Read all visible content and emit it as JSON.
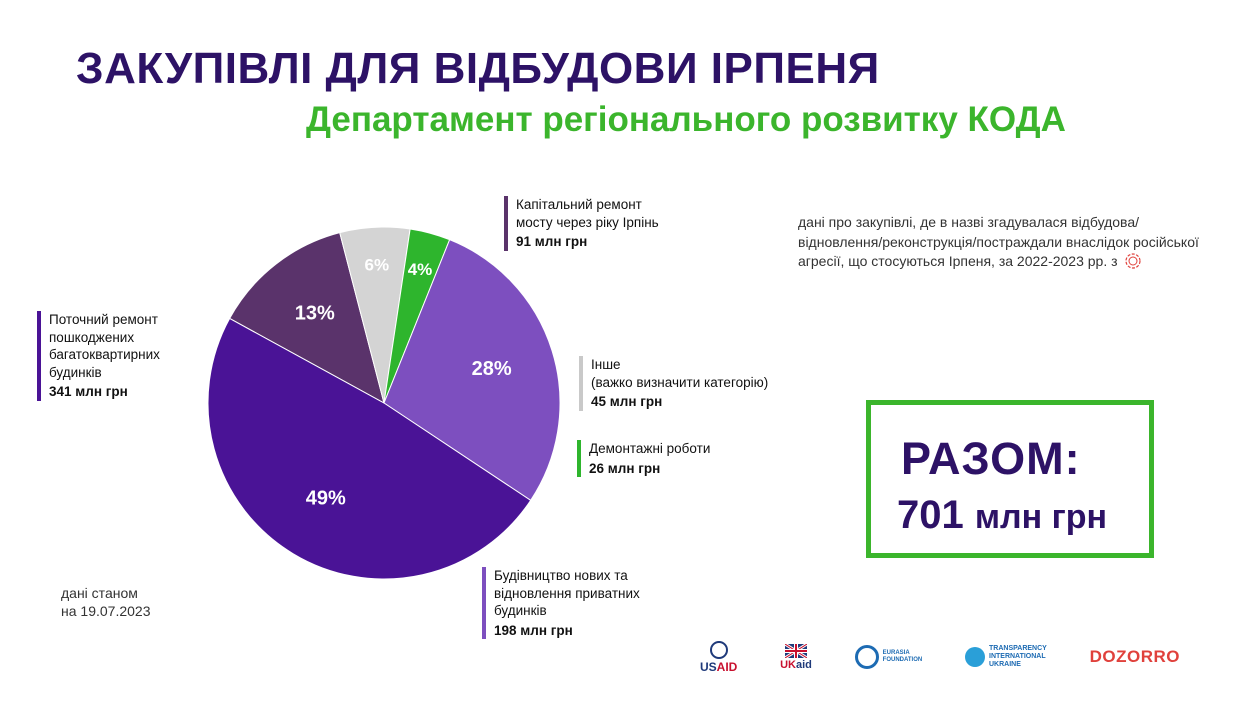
{
  "header": {
    "title": "ЗАКУПІВЛІ ДЛЯ ВІДБУДОВИ ІРПЕНЯ",
    "subtitle": "Департамент регіонального розвитку КОДА"
  },
  "colors": {
    "title": "#2d1266",
    "accent_green": "#3bb52c"
  },
  "chart_data": {
    "type": "pie",
    "unit": "млн грн",
    "slices": [
      {
        "label": "Капітальний ремонт\nмосту через ріку Ірпінь",
        "value": 91,
        "amount_label": "91 млн грн",
        "percent_label": "13%",
        "color": "#5a336b"
      },
      {
        "label": "Інше\n(важко визначити категорію)",
        "value": 45,
        "amount_label": "45 млн грн",
        "percent_label": "6%",
        "color": "#d4d4d4"
      },
      {
        "label": "Демонтажні роботи",
        "value": 26,
        "amount_label": "26 млн грн",
        "percent_label": "4%",
        "color": "#2eb52d"
      },
      {
        "label": "Будівництво нових та\nвідновлення приватних\nбудинків",
        "value": 198,
        "amount_label": "198 млн грн",
        "percent_label": "28%",
        "color": "#7d4fbf"
      },
      {
        "label": "Поточний ремонт\nпошкоджених\nбагатоквартирних\nбудинків",
        "value": 341,
        "amount_label": "341 млн грн",
        "percent_label": "49%",
        "color": "#4a1396"
      }
    ]
  },
  "note": {
    "text": "дані про закупівлі, де в назві згадувалася відбудова/ відновлення/реконструкція/постраждали внаслідок російської агресії, що стосуються Ірпеня, за 2022-2023 рр. з",
    "source_icon": "bi-logo-icon"
  },
  "total": {
    "label": "РАЗОМ:",
    "value": "701",
    "unit": "млн грн"
  },
  "date_note": "дані станом\nна 19.07.2023",
  "logos": {
    "usaid_a": "US",
    "usaid_b": "AID",
    "ukaid_a": "UK",
    "ukaid_b": "aid",
    "eurasia": "EURASIA\nFOUNDATION",
    "ti": "TRANSPARENCY\nINTERNATIONAL\nUKRAINE",
    "dozorro": "DOZORRO"
  }
}
